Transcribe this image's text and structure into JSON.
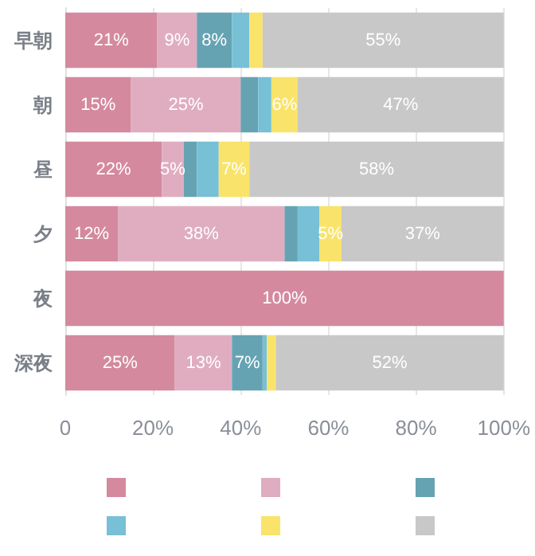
{
  "chart_data": {
    "type": "bar",
    "orientation": "horizontal",
    "stacked": true,
    "categories": [
      "早朝",
      "朝",
      "昼",
      "夕",
      "夜",
      "深夜"
    ],
    "series": [
      {
        "color": "#d4899f",
        "values": [
          21,
          15,
          22,
          12,
          100,
          25
        ],
        "value_labels": [
          "21%",
          "15%",
          "22%",
          "12%",
          "100%",
          "25%"
        ]
      },
      {
        "color": "#e0adc0",
        "values": [
          9,
          25,
          5,
          38,
          0,
          13
        ],
        "value_labels": [
          "9%",
          "25%",
          "5%",
          "38%",
          null,
          "13%"
        ]
      },
      {
        "color": "#65a3b3",
        "values": [
          8,
          4,
          3,
          3,
          0,
          7
        ],
        "value_labels": [
          "8%",
          null,
          null,
          null,
          null,
          "7%"
        ]
      },
      {
        "color": "#77c0d5",
        "values": [
          4,
          3,
          5,
          5,
          0,
          1
        ],
        "value_labels": [
          null,
          null,
          null,
          null,
          null,
          null
        ]
      },
      {
        "color": "#f9e36a",
        "values": [
          3,
          6,
          7,
          5,
          0,
          2
        ],
        "value_labels": [
          null,
          "6%",
          "7%",
          "5%",
          null,
          null
        ]
      },
      {
        "color": "#c8c8c8",
        "values": [
          55,
          47,
          58,
          37,
          0,
          52
        ],
        "value_labels": [
          "55%",
          "47%",
          "58%",
          "37%",
          null,
          "52%"
        ]
      }
    ],
    "xlim": [
      0,
      100
    ],
    "xticks": [
      {
        "value": 0,
        "label": "0"
      },
      {
        "value": 20,
        "label": "20%"
      },
      {
        "value": 40,
        "label": "40%"
      },
      {
        "value": 60,
        "label": "60%"
      },
      {
        "value": 80,
        "label": "80%"
      },
      {
        "value": 100,
        "label": "100%"
      }
    ],
    "grid": "x"
  }
}
